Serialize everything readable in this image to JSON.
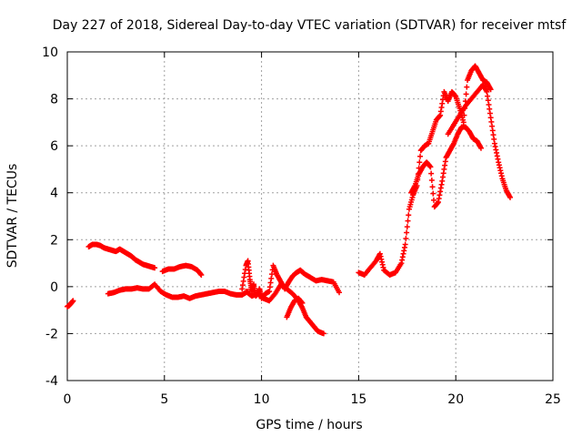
{
  "chart_data": {
    "type": "scatter",
    "title": "Day 227 of 2018, Sidereal Day-to-day VTEC variation (SDTVAR) for receiver mtsf",
    "xlabel": "GPS time / hours",
    "ylabel": "SDTVAR / TECUs",
    "xlim": [
      0,
      25
    ],
    "ylim": [
      -4,
      10
    ],
    "xticks": [
      "0",
      "5",
      "10",
      "15",
      "20",
      "25"
    ],
    "yticks": [
      "-4",
      "-2",
      "0",
      "2",
      "4",
      "6",
      "8",
      "10"
    ],
    "grid": true,
    "marker": "+",
    "color": "#ff0000",
    "series": [
      {
        "name": "start",
        "x": [
          0.0,
          0.1,
          0.2,
          0.3
        ],
        "y": [
          -0.85,
          -0.8,
          -0.7,
          -0.6
        ]
      },
      {
        "name": "trace-a",
        "x": [
          1.1,
          1.3,
          1.5,
          1.7,
          1.9,
          2.1,
          2.3,
          2.5,
          2.7,
          2.9,
          3.1,
          3.3,
          3.5,
          3.7,
          3.9,
          4.1,
          4.3,
          4.5
        ],
        "y": [
          1.7,
          1.8,
          1.8,
          1.75,
          1.65,
          1.6,
          1.55,
          1.5,
          1.6,
          1.5,
          1.4,
          1.3,
          1.15,
          1.05,
          0.95,
          0.9,
          0.85,
          0.8
        ]
      },
      {
        "name": "trace-b",
        "x": [
          2.1,
          2.4,
          2.7,
          3.0,
          3.3,
          3.6,
          3.9,
          4.2,
          4.5,
          4.8,
          5.1,
          5.4,
          5.7,
          6.0,
          6.3,
          6.6,
          6.9,
          7.2,
          7.5,
          7.8,
          8.1,
          8.4,
          8.7,
          9.0,
          9.3
        ],
        "y": [
          -0.3,
          -0.25,
          -0.15,
          -0.1,
          -0.1,
          -0.05,
          -0.1,
          -0.1,
          0.1,
          -0.2,
          -0.35,
          -0.45,
          -0.45,
          -0.4,
          -0.5,
          -0.4,
          -0.35,
          -0.3,
          -0.25,
          -0.2,
          -0.2,
          -0.3,
          -0.35,
          -0.35,
          -0.2
        ]
      },
      {
        "name": "trace-c",
        "x": [
          4.9,
          5.2,
          5.5,
          5.8,
          6.1,
          6.4,
          6.7,
          6.9
        ],
        "y": [
          0.65,
          0.75,
          0.75,
          0.85,
          0.9,
          0.85,
          0.7,
          0.5
        ]
      },
      {
        "name": "trace-d",
        "x": [
          9.0,
          9.2,
          9.3,
          9.4,
          9.5,
          9.6,
          9.7,
          9.8,
          9.9,
          10.0,
          10.2,
          10.4,
          10.6,
          10.8,
          11.0,
          11.2,
          11.4,
          11.6,
          11.8,
          12.0,
          12.2,
          12.5,
          12.8,
          13.1,
          13.4,
          13.7,
          14.0
        ],
        "y": [
          -0.1,
          0.9,
          1.1,
          0.3,
          -0.2,
          0.1,
          -0.4,
          -0.3,
          -0.1,
          -0.5,
          -0.3,
          -0.2,
          0.9,
          0.5,
          0.2,
          -0.1,
          0.2,
          0.45,
          0.6,
          0.7,
          0.55,
          0.4,
          0.25,
          0.3,
          0.25,
          0.2,
          -0.25
        ]
      },
      {
        "name": "trace-e",
        "x": [
          9.2,
          9.5,
          9.8,
          10.1,
          10.4,
          10.7,
          11.0,
          11.3,
          11.6,
          11.9,
          12.1,
          12.3,
          12.5,
          12.7,
          12.9,
          13.2
        ],
        "y": [
          -0.2,
          -0.4,
          -0.3,
          -0.5,
          -0.6,
          -0.3,
          0.1,
          -0.1,
          -0.3,
          -0.6,
          -0.9,
          -1.3,
          -1.5,
          -1.7,
          -1.9,
          -2.0
        ]
      },
      {
        "name": "trace-f",
        "x": [
          11.3,
          11.5,
          11.7,
          11.9,
          12.1
        ],
        "y": [
          -1.3,
          -0.9,
          -0.6,
          -0.5,
          -0.7
        ]
      },
      {
        "name": "trace-g",
        "x": [
          15.0,
          15.3,
          15.6,
          15.9,
          16.1,
          16.3,
          16.6,
          16.9,
          17.2,
          17.4,
          17.6,
          17.8,
          18.0,
          18.2,
          18.4,
          18.6,
          18.8,
          19.0,
          19.2,
          19.4,
          19.6,
          19.8,
          20.0,
          20.2,
          20.4,
          20.6,
          20.8,
          21.0,
          21.2,
          21.4,
          21.6,
          21.8
        ],
        "y": [
          0.6,
          0.5,
          0.8,
          1.1,
          1.4,
          0.7,
          0.5,
          0.6,
          1.0,
          1.8,
          3.3,
          3.9,
          4.3,
          5.8,
          6.0,
          6.1,
          6.6,
          7.1,
          7.3,
          8.3,
          7.9,
          8.3,
          8.1,
          7.6,
          7.0,
          8.8,
          9.2,
          9.4,
          9.1,
          8.8,
          8.7,
          8.4
        ]
      },
      {
        "name": "trace-h",
        "x": [
          17.7,
          17.9,
          18.1,
          18.3,
          18.5,
          18.7,
          18.9,
          19.1,
          19.3,
          19.5,
          19.7,
          19.9,
          20.1,
          20.3,
          20.5,
          20.7,
          20.9,
          21.1,
          21.3
        ],
        "y": [
          4.0,
          4.3,
          4.8,
          5.1,
          5.3,
          5.1,
          3.4,
          3.6,
          4.5,
          5.5,
          5.8,
          6.1,
          6.5,
          6.8,
          6.8,
          6.6,
          6.3,
          6.2,
          5.9
        ]
      },
      {
        "name": "trace-i",
        "x": [
          21.4,
          21.6,
          21.8,
          22.0,
          22.2,
          22.4,
          22.6,
          22.8
        ],
        "y": [
          8.6,
          8.3,
          7.2,
          6.1,
          5.3,
          4.6,
          4.1,
          3.8
        ]
      },
      {
        "name": "trace-j",
        "x": [
          19.6,
          19.9,
          20.2,
          20.5,
          20.8,
          21.1,
          21.4
        ],
        "y": [
          6.5,
          6.9,
          7.3,
          7.7,
          8.0,
          8.3,
          8.6
        ]
      }
    ]
  }
}
